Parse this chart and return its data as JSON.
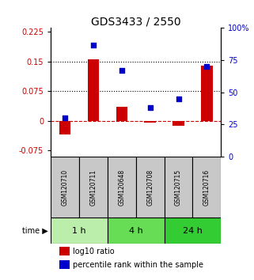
{
  "title": "GDS3433 / 2550",
  "samples": [
    "GSM120710",
    "GSM120711",
    "GSM120648",
    "GSM120708",
    "GSM120715",
    "GSM120716"
  ],
  "log10_ratio": [
    -0.035,
    0.155,
    0.035,
    -0.005,
    -0.012,
    0.14
  ],
  "percentile_rank": [
    30,
    87,
    67,
    38,
    45,
    70
  ],
  "time_groups": [
    {
      "label": "1 h",
      "start": 0,
      "end": 2,
      "color": "#bbeeaa"
    },
    {
      "label": "4 h",
      "start": 2,
      "end": 4,
      "color": "#66dd55"
    },
    {
      "label": "24 h",
      "start": 4,
      "end": 6,
      "color": "#33cc33"
    }
  ],
  "left_ylim": [
    -0.09,
    0.235
  ],
  "left_yticks": [
    -0.075,
    0,
    0.075,
    0.15,
    0.225
  ],
  "right_ylim": [
    0,
    100
  ],
  "right_yticks": [
    0,
    25,
    50,
    75,
    100
  ],
  "bar_color": "#cc0000",
  "scatter_color": "#0000cc",
  "hline_color": "#cc0000",
  "dotted_line_color": "#000000",
  "sample_box_color": "#c8c8c8",
  "title_fontsize": 10,
  "tick_fontsize": 7,
  "sample_fontsize": 5.5,
  "time_fontsize": 8,
  "legend_fontsize": 7
}
